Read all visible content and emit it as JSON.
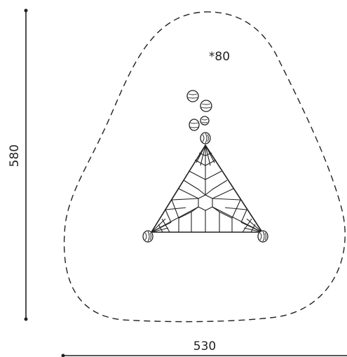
{
  "dimensions": {
    "height_label": "580",
    "width_label": "530",
    "zone_label": "*80"
  },
  "colors": {
    "stroke": "#222222",
    "background": "#ffffff"
  }
}
